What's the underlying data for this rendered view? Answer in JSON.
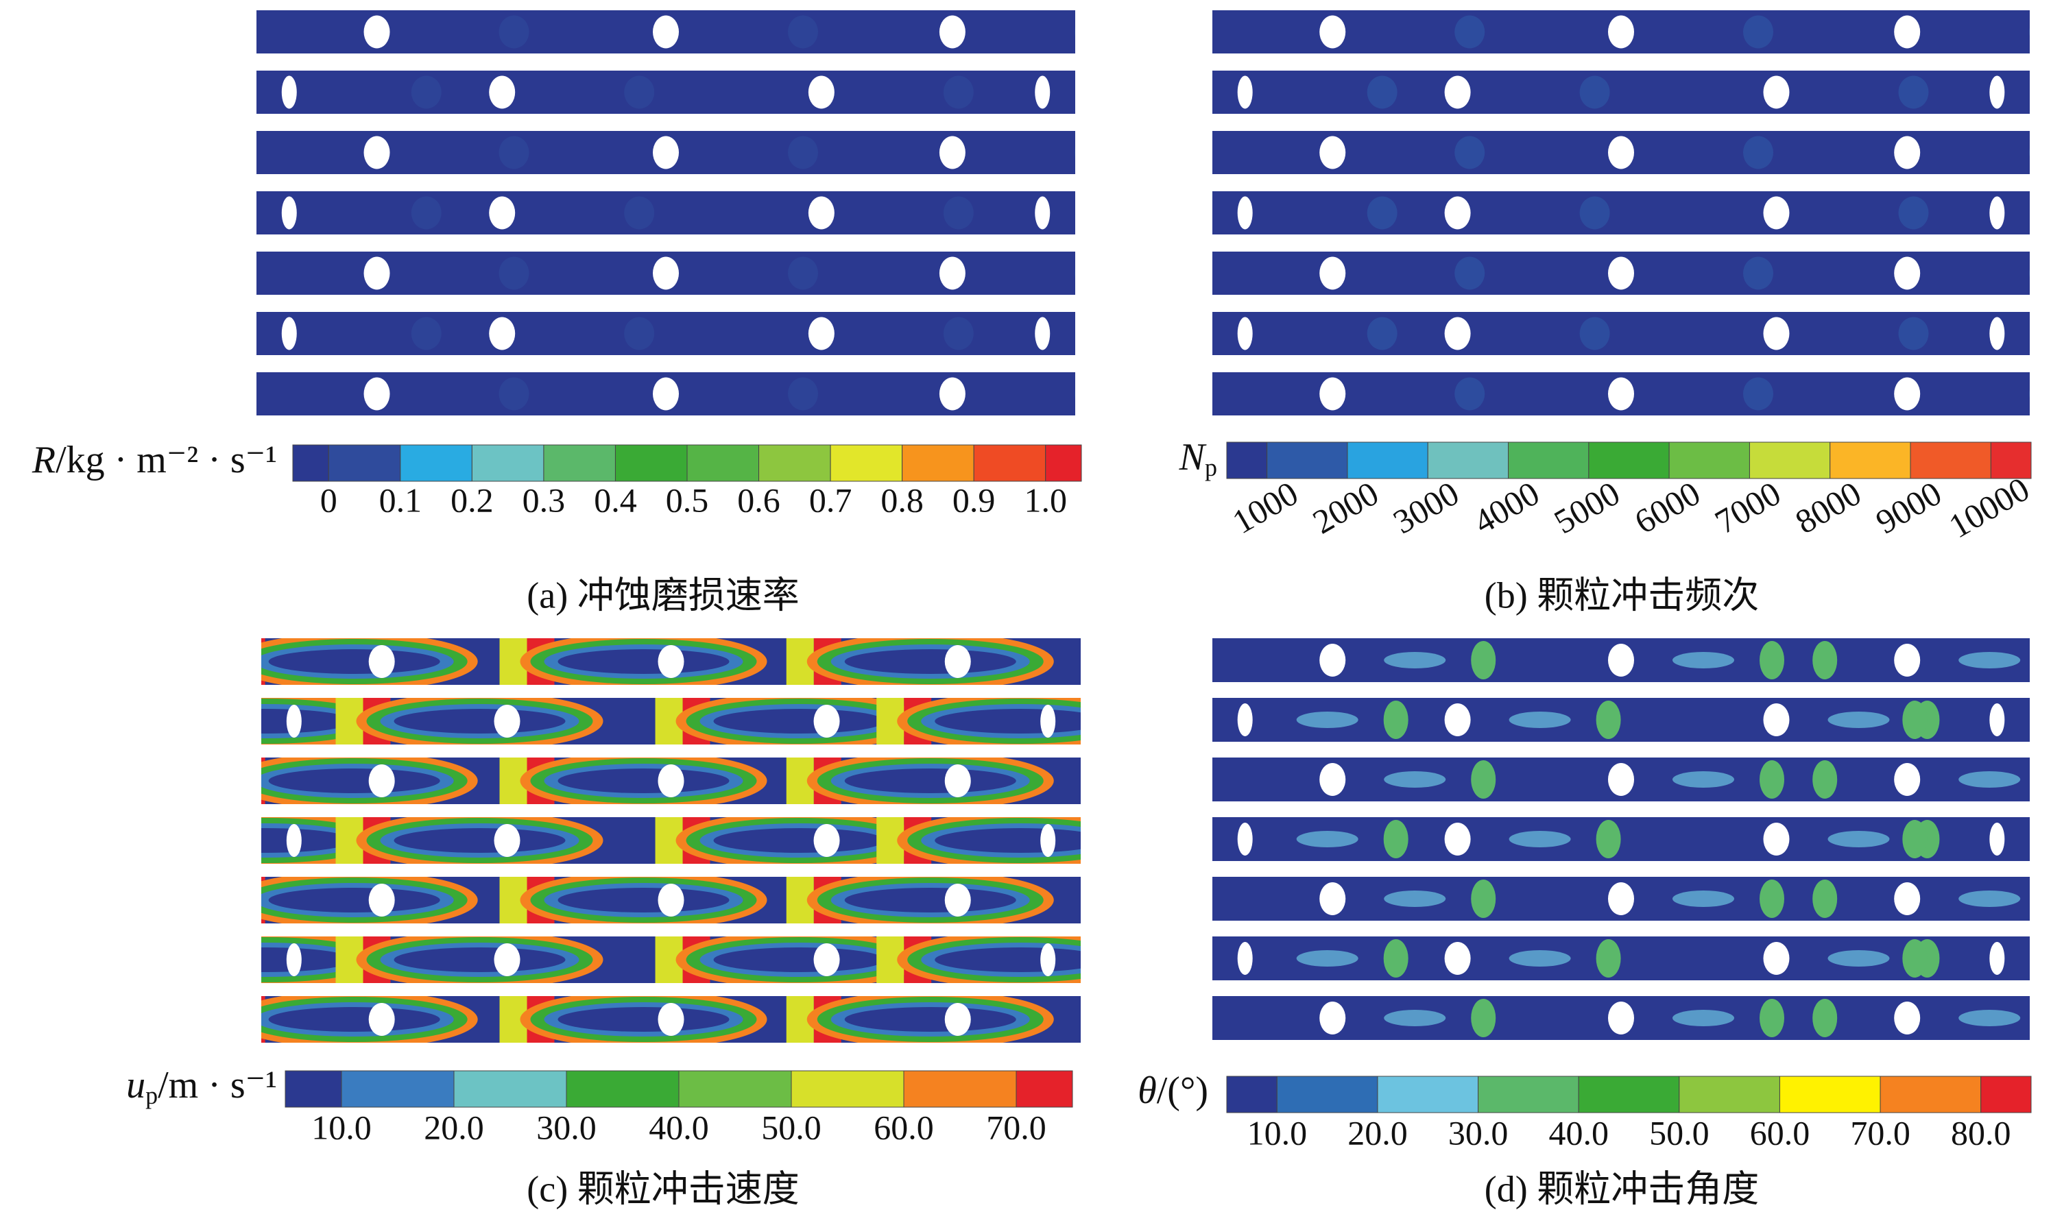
{
  "panels": [
    {
      "caption": "(a) 冲蚀磨损速率",
      "colorbar": {
        "symbol": "R",
        "unit": "/kg · m⁻² · s⁻¹",
        "ticks": [
          "0",
          "0.1",
          "0.2",
          "0.3",
          "0.4",
          "0.5",
          "0.6",
          "0.7",
          "0.8",
          "0.9",
          "1.0"
        ],
        "colors": [
          "#2b3990",
          "#2f4b9c",
          "#29abe2",
          "#6cc3c4",
          "#5bb86a",
          "#3aaa35",
          "#55b446",
          "#8dc63f",
          "#e2e62a",
          "#f7941d",
          "#ef4b24",
          "#e5222a"
        ]
      }
    },
    {
      "caption": "(b) 颗粒冲击频次",
      "colorbar": {
        "symbol": "N",
        "sub": "p",
        "unit": "",
        "ticks": [
          "1000",
          "2000",
          "3000",
          "4000",
          "5000",
          "6000",
          "7000",
          "8000",
          "9000",
          "10000"
        ],
        "colors": [
          "#2b3990",
          "#2e5aa8",
          "#29a3e0",
          "#6fc1be",
          "#4fb35a",
          "#3aaa35",
          "#6cbd45",
          "#c6dc3a",
          "#fbb526",
          "#f05a28",
          "#e62e2e"
        ]
      }
    },
    {
      "caption": "(c) 颗粒冲击速度",
      "colorbar": {
        "symbol": "u",
        "sub": "p",
        "unit": "/m · s⁻¹",
        "ticks": [
          "10.0",
          "20.0",
          "30.0",
          "40.0",
          "50.0",
          "60.0",
          "70.0"
        ],
        "colors": [
          "#2b3990",
          "#3a7cc0",
          "#6cc3c4",
          "#3aaa35",
          "#6cbd45",
          "#d7e02a",
          "#f58220",
          "#e5222a"
        ]
      }
    },
    {
      "caption": "(d) 颗粒冲击角度",
      "colorbar": {
        "symbol": "θ",
        "unit": "/(°)",
        "ticks": [
          "10.0",
          "20.0",
          "30.0",
          "40.0",
          "50.0",
          "60.0",
          "70.0",
          "80.0"
        ],
        "colors": [
          "#2b3990",
          "#2e6db4",
          "#6cc3e0",
          "#5bb86a",
          "#3aaa35",
          "#8dc63f",
          "#fff200",
          "#f58220",
          "#e5222a"
        ]
      }
    }
  ]
}
